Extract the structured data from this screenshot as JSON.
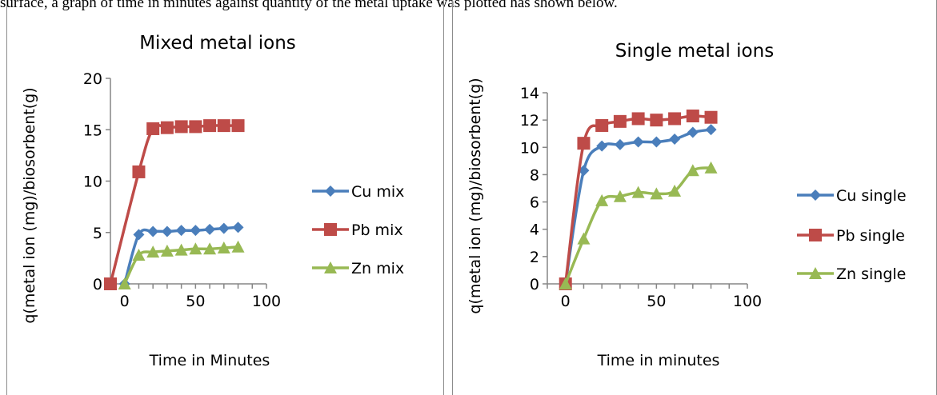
{
  "caption": "surface, a graph of time in minutes against quantity of the metal uptake was plotted has shown below.",
  "colors": {
    "cu": "#4a7ebb",
    "pb": "#be4b48",
    "zn": "#98b954",
    "axis": "#868686"
  },
  "chart_data": [
    {
      "type": "line",
      "title": "Mixed metal ions",
      "xlabel": "Time in Minutes",
      "ylabel": "q(metal ion (mg)/biosorbent(g)",
      "xlim": [
        -10,
        100
      ],
      "ylim": [
        0,
        20
      ],
      "xticks": [
        0,
        50,
        100
      ],
      "yticks": [
        0,
        5,
        10,
        15,
        20
      ],
      "grid": false,
      "legend_position": "right",
      "series": [
        {
          "name": "Cu mix",
          "marker": "diamond",
          "color": "#4a7ebb",
          "x": [
            0,
            10,
            20,
            30,
            40,
            50,
            60,
            70,
            80
          ],
          "y": [
            0,
            4.8,
            5.1,
            5.1,
            5.2,
            5.2,
            5.3,
            5.4,
            5.5
          ]
        },
        {
          "name": "Pb mix",
          "marker": "square",
          "color": "#be4b48",
          "x": [
            -10,
            10,
            20,
            30,
            40,
            50,
            60,
            70,
            80
          ],
          "y": [
            0,
            10.9,
            15.1,
            15.2,
            15.3,
            15.3,
            15.4,
            15.4,
            15.4
          ]
        },
        {
          "name": "Zn mix",
          "marker": "triangle",
          "color": "#98b954",
          "x": [
            0,
            10,
            20,
            30,
            40,
            50,
            60,
            70,
            80
          ],
          "y": [
            0,
            2.8,
            3.1,
            3.2,
            3.3,
            3.4,
            3.4,
            3.5,
            3.6
          ]
        }
      ]
    },
    {
      "type": "line",
      "title": "Single metal ions",
      "xlabel": "Time in minutes",
      "ylabel": "q(metal ion (mg)/biosorbent(g)",
      "xlim": [
        -10,
        100
      ],
      "ylim": [
        0,
        14
      ],
      "xticks": [
        0,
        50,
        100
      ],
      "yticks": [
        0,
        2,
        4,
        6,
        8,
        10,
        12,
        14
      ],
      "grid": false,
      "legend_position": "right",
      "series": [
        {
          "name": "Cu single",
          "marker": "diamond",
          "color": "#4a7ebb",
          "x": [
            0,
            10,
            20,
            30,
            40,
            50,
            60,
            70,
            80
          ],
          "y": [
            0,
            8.3,
            10.1,
            10.2,
            10.4,
            10.4,
            10.6,
            11.1,
            11.3
          ]
        },
        {
          "name": "Pb single",
          "marker": "square",
          "color": "#be4b48",
          "x": [
            0,
            10,
            20,
            30,
            40,
            50,
            60,
            70,
            80
          ],
          "y": [
            0,
            10.3,
            11.6,
            11.9,
            12.1,
            12.0,
            12.1,
            12.3,
            12.2
          ]
        },
        {
          "name": "Zn single",
          "marker": "triangle",
          "color": "#98b954",
          "x": [
            0,
            10,
            20,
            30,
            40,
            50,
            60,
            70,
            80
          ],
          "y": [
            0,
            3.3,
            6.1,
            6.4,
            6.7,
            6.6,
            6.8,
            8.3,
            8.5
          ]
        }
      ]
    }
  ]
}
